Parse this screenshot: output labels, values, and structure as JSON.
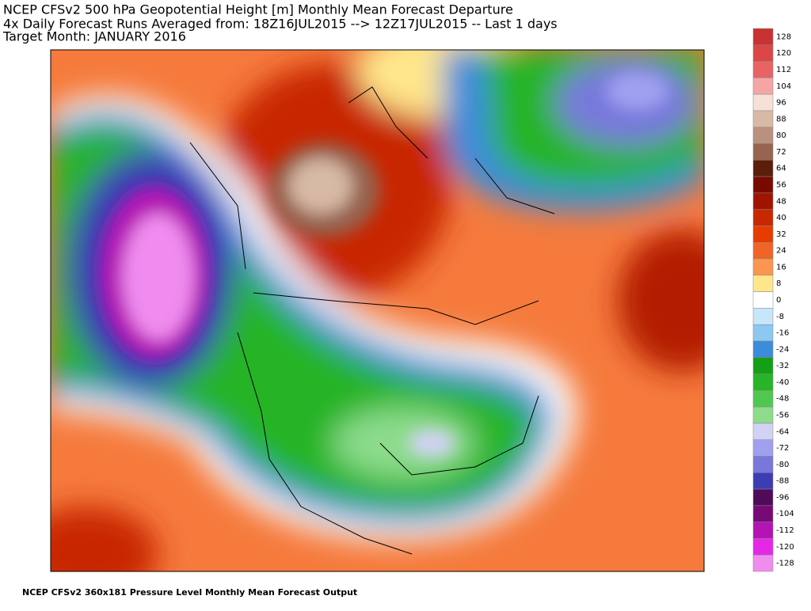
{
  "header": {
    "lines": [
      "NCEP CFSv2 500 hPa Geopotential Height [m] Monthly Mean Forecast Departure",
      "4x Daily Forecast Runs Averaged from: 18Z16JUL2015 --> 12Z17JUL2015 -- Last 1 days",
      "Target Month: JANUARY 2016"
    ]
  },
  "colorbar": {
    "levels": [
      128,
      120,
      112,
      104,
      96,
      88,
      80,
      72,
      64,
      56,
      48,
      40,
      32,
      24,
      16,
      8,
      0,
      -8,
      -16,
      -24,
      -32,
      -40,
      -48,
      -56,
      -64,
      -72,
      -80,
      -88,
      -96,
      -104,
      -112,
      -120,
      -128
    ],
    "colors": [
      "#c83232",
      "#dc4646",
      "#e86464",
      "#f5a5a5",
      "#f7e1d7",
      "#d7b9a5",
      "#b9917d",
      "#966450",
      "#5a1e0a",
      "#780a00",
      "#a01400",
      "#c82800",
      "#e63c00",
      "#f06428",
      "#fa9650",
      "#ffe68c",
      "#ffffff",
      "#c8e6fa",
      "#8cc8f0",
      "#3c8cdc",
      "#14a014",
      "#28b428",
      "#50c850",
      "#8cdc8c",
      "#d2d2f5",
      "#a0a0f0",
      "#7878dc",
      "#3c3cb4",
      "#500a5a",
      "#780a78",
      "#b414b4",
      "#e628e6",
      "#f08cf0"
    ]
  },
  "footer": "NCEP CFSv2 360x181 Pressure Level Monthly Mean Forecast Output"
}
